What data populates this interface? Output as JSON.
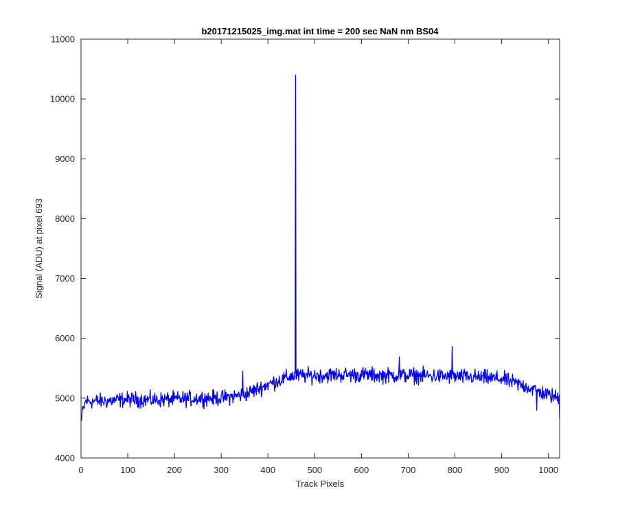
{
  "chart_data": {
    "type": "line",
    "title": "b20171215025_img.mat int time = 200 sec  NaN nm BS04",
    "xlabel": "Track Pixels",
    "ylabel": "Signal (ADU) at pixel 693",
    "xlim": [
      0,
      1024
    ],
    "ylim": [
      4000,
      11000
    ],
    "xticks": [
      0,
      100,
      200,
      300,
      400,
      500,
      600,
      700,
      800,
      900,
      1000
    ],
    "yticks": [
      4000,
      5000,
      6000,
      7000,
      8000,
      9000,
      10000,
      11000
    ],
    "grid": false,
    "box": true,
    "series": [
      {
        "color": "#0000ff",
        "x_start": 1,
        "x_end": 1024,
        "profile": [
          [
            1,
            4700
          ],
          [
            10,
            4950
          ],
          [
            50,
            4950
          ],
          [
            100,
            4980
          ],
          [
            150,
            4970
          ],
          [
            200,
            4980
          ],
          [
            250,
            5000
          ],
          [
            300,
            5000
          ],
          [
            350,
            5060
          ],
          [
            400,
            5230
          ],
          [
            450,
            5370
          ],
          [
            500,
            5380
          ],
          [
            550,
            5390
          ],
          [
            600,
            5390
          ],
          [
            650,
            5380
          ],
          [
            700,
            5380
          ],
          [
            750,
            5370
          ],
          [
            800,
            5360
          ],
          [
            850,
            5350
          ],
          [
            900,
            5320
          ],
          [
            950,
            5200
          ],
          [
            1000,
            5050
          ],
          [
            1024,
            5000
          ]
        ],
        "noise_amplitude": 140,
        "peaks": [
          {
            "x": 459,
            "y": 10400
          },
          {
            "x": 794,
            "y": 5860
          },
          {
            "x": 681,
            "y": 5690
          },
          {
            "x": 346,
            "y": 5450
          },
          {
            "x": 1024,
            "y": 4650
          },
          {
            "x": 1,
            "y": 4620
          },
          {
            "x": 975,
            "y": 4800
          }
        ]
      }
    ]
  }
}
